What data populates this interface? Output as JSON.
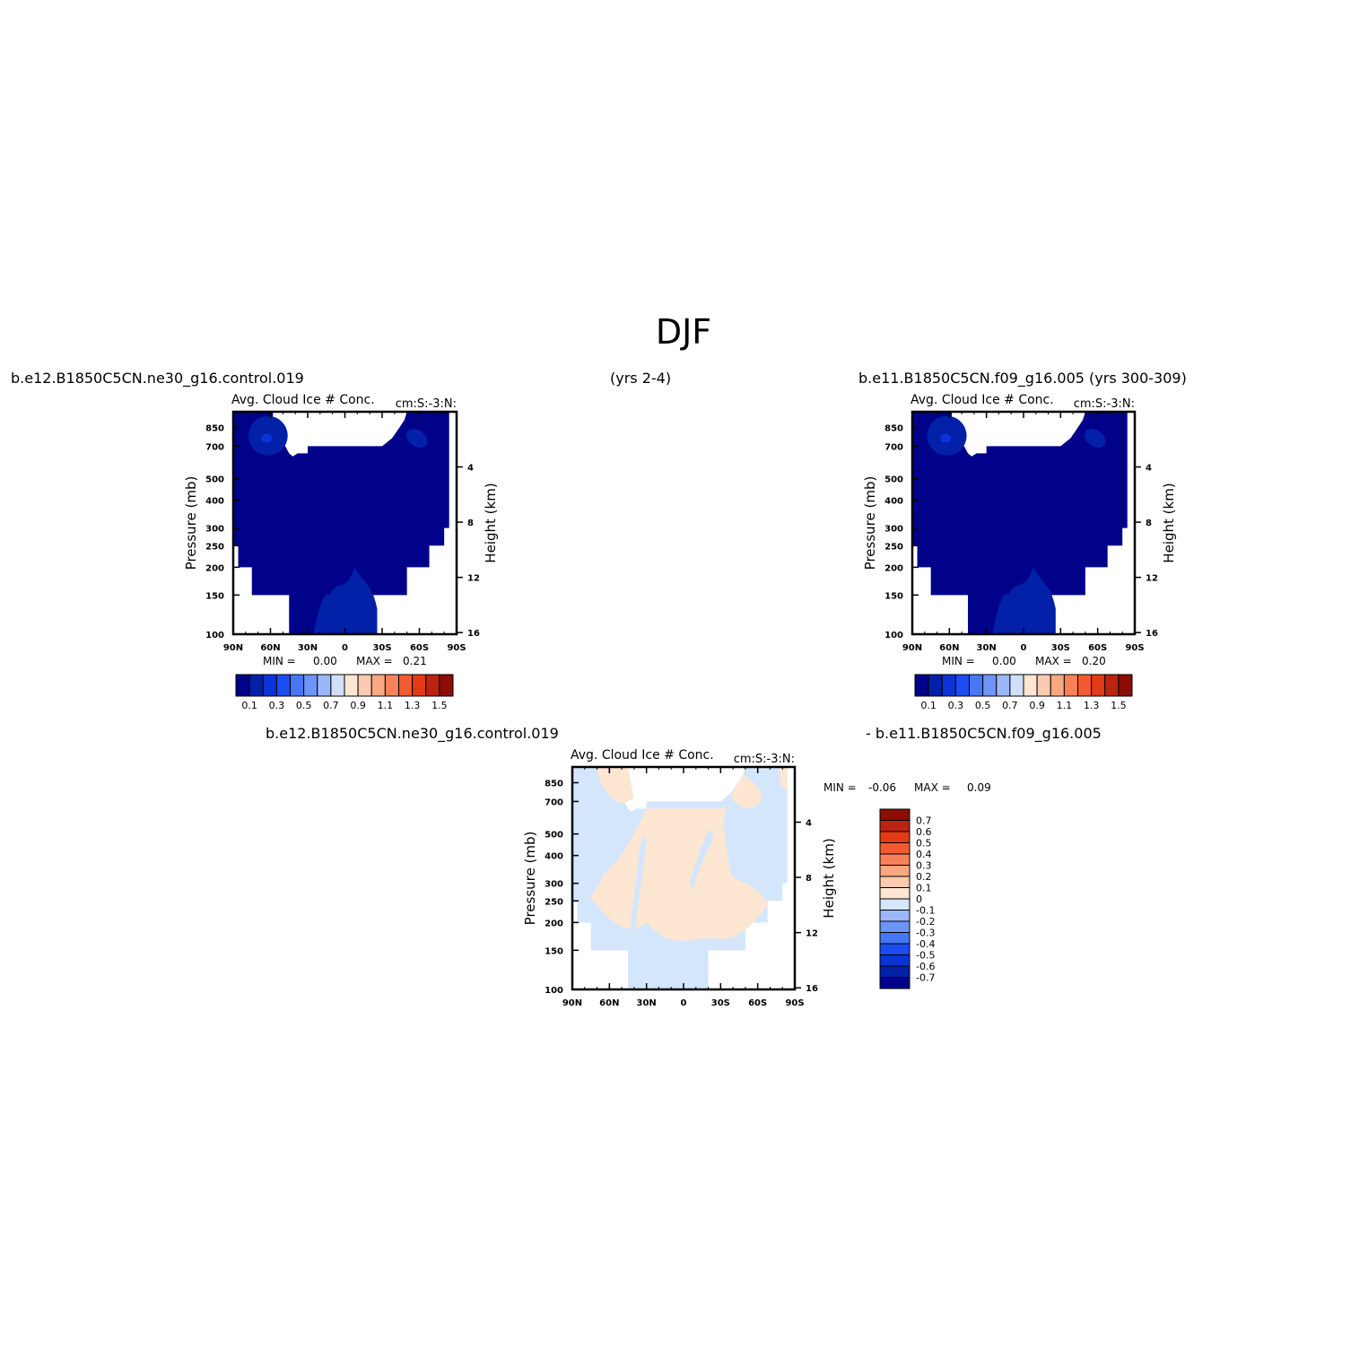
{
  "page": {
    "season": "DJF",
    "case1_name": "b.e12.B1850C5CN.ne30_g16.control.019",
    "case1_years": "(yrs 2-4)",
    "case2_name": "b.e11.B1850C5CN.f09_g16.005 (yrs 300-309)",
    "diff_case1": "b.e12.B1850C5CN.ne30_g16.control.019",
    "diff_case2": "- b.e11.B1850C5CN.f09_g16.005"
  },
  "colors": {
    "field_palette": [
      "#00028a",
      "#0220a8",
      "#0a34d8",
      "#1d4cf0",
      "#4677f6",
      "#6d95f8",
      "#9cb6fa",
      "#cfdffc",
      "#fde6d2",
      "#fccab0",
      "#f9a882",
      "#f7825a",
      "#f45a32",
      "#e23a14",
      "#bb2410",
      "#8c0c06"
    ],
    "diff_palette": [
      "#00028a",
      "#0220a8",
      "#0a34d8",
      "#1d4cf0",
      "#4677f6",
      "#6d95f8",
      "#9cb6fa",
      "#d4e6fc",
      "#fde6d2",
      "#fccab0",
      "#f9a882",
      "#f7825a",
      "#f45a32",
      "#e23a14",
      "#bb2410",
      "#8c0c06"
    ]
  },
  "chart_data": [
    {
      "type": "heatmap",
      "panel": "case1",
      "subtitle": "Avg. Cloud Ice # Conc.",
      "units": "cm:S:-3:N:",
      "ylabel": "Pressure (mb)",
      "ylabel_right": "Height (km)",
      "x_ticks": [
        "90N",
        "60N",
        "30N",
        "0",
        "30S",
        "60S",
        "90S"
      ],
      "xlim": [
        90,
        -90
      ],
      "y_ticks": [
        100,
        150,
        200,
        250,
        300,
        400,
        500,
        700,
        850
      ],
      "ylim": [
        1000,
        100
      ],
      "y_scale": "log",
      "right_ticks": [
        16,
        12,
        8,
        4
      ],
      "min_label": "MIN =",
      "min_value": "0.00",
      "max_label": "MAX =",
      "max_value": "0.21",
      "colorbar_labels": [
        "0.1",
        "0.3",
        "0.5",
        "0.7",
        "0.9",
        "1.1",
        "1.3",
        "1.5"
      ],
      "colorbar_levels": [
        0.1,
        0.2,
        0.3,
        0.4,
        0.5,
        0.6,
        0.7,
        0.8,
        0.9,
        1.0,
        1.1,
        1.2,
        1.3,
        1.4,
        1.5
      ]
    },
    {
      "type": "heatmap",
      "panel": "case2",
      "subtitle": "Avg. Cloud Ice # Conc.",
      "units": "cm:S:-3:N:",
      "ylabel": "Pressure (mb)",
      "ylabel_right": "Height (km)",
      "x_ticks": [
        "90N",
        "60N",
        "30N",
        "0",
        "30S",
        "60S",
        "90S"
      ],
      "xlim": [
        90,
        -90
      ],
      "y_ticks": [
        100,
        150,
        200,
        250,
        300,
        400,
        500,
        700,
        850
      ],
      "ylim": [
        1000,
        100
      ],
      "y_scale": "log",
      "right_ticks": [
        16,
        12,
        8,
        4
      ],
      "min_label": "MIN =",
      "min_value": "0.00",
      "max_label": "MAX =",
      "max_value": "0.20",
      "colorbar_labels": [
        "0.1",
        "0.3",
        "0.5",
        "0.7",
        "0.9",
        "1.1",
        "1.3",
        "1.5"
      ],
      "colorbar_levels": [
        0.1,
        0.2,
        0.3,
        0.4,
        0.5,
        0.6,
        0.7,
        0.8,
        0.9,
        1.0,
        1.1,
        1.2,
        1.3,
        1.4,
        1.5
      ]
    },
    {
      "type": "heatmap",
      "panel": "difference",
      "subtitle": "Avg. Cloud Ice # Conc.",
      "units": "cm:S:-3:N:",
      "ylabel": "Pressure (mb)",
      "ylabel_right": "Height (km)",
      "x_ticks": [
        "90N",
        "60N",
        "30N",
        "0",
        "30S",
        "60S",
        "90S"
      ],
      "xlim": [
        90,
        -90
      ],
      "y_ticks": [
        100,
        150,
        200,
        250,
        300,
        400,
        500,
        700,
        850
      ],
      "ylim": [
        1000,
        100
      ],
      "y_scale": "log",
      "right_ticks": [
        16,
        12,
        8,
        4
      ],
      "min_label": "MIN =",
      "min_value": "-0.06",
      "max_label": "MAX =",
      "max_value": "0.09",
      "colorbar_labels": [
        "0.7",
        "0.6",
        "0.5",
        "0.4",
        "0.3",
        "0.2",
        "0.1",
        "0",
        "-0.1",
        "-0.2",
        "-0.3",
        "-0.4",
        "-0.5",
        "-0.6",
        "-0.7"
      ]
    }
  ]
}
